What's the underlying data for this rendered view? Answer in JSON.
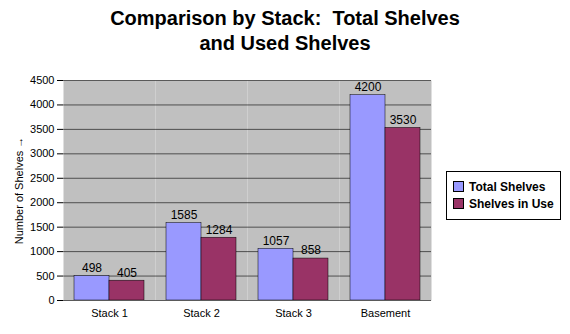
{
  "chart_data": {
    "type": "bar",
    "title": "Comparison by Stack:  Total Shelves\nand Used Shelves",
    "categories": [
      "Stack 1",
      "Stack 2",
      "Stack 3",
      "Basement"
    ],
    "series": [
      {
        "name": "Total Shelves",
        "color": "#9999ff",
        "values": [
          498,
          1585,
          1057,
          4200
        ]
      },
      {
        "name": "Shelves in Use",
        "color": "#993366",
        "values": [
          405,
          1284,
          858,
          3530
        ]
      }
    ],
    "ylabel": "Number of Shelves",
    "ylim": [
      0,
      4500
    ],
    "yticks": [
      0,
      500,
      1000,
      1500,
      2000,
      2500,
      3000,
      3500,
      4000,
      4500
    ],
    "grid": true,
    "legend": "right",
    "data_labels": true
  }
}
